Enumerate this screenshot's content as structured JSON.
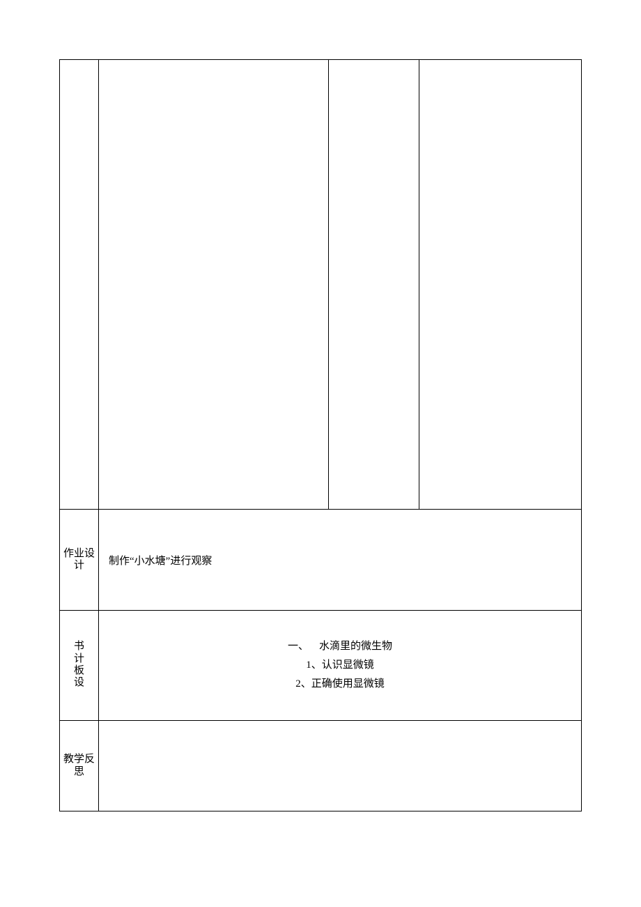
{
  "rows": {
    "homework": {
      "label": "作业设计",
      "content": "制作“小水塘”进行观察"
    },
    "board": {
      "label": "书计板设",
      "title_prefix": "一、",
      "title": "水滴里的微生物",
      "item1": "1、认识显微镜",
      "item2": "2、正确使用显微镜"
    },
    "reflection": {
      "label": "教学反思",
      "content": ""
    }
  },
  "styling": {
    "border_color": "#000000",
    "background_color": "#ffffff",
    "font_family": "SimSun",
    "base_fontsize": 15,
    "label_col_width": 56,
    "page_padding": 85,
    "row_heights": {
      "r1": 645,
      "r2": 145,
      "r3": 158,
      "r4": 130
    },
    "inner_col_widths": {
      "c1": 330,
      "c2": 130
    }
  }
}
